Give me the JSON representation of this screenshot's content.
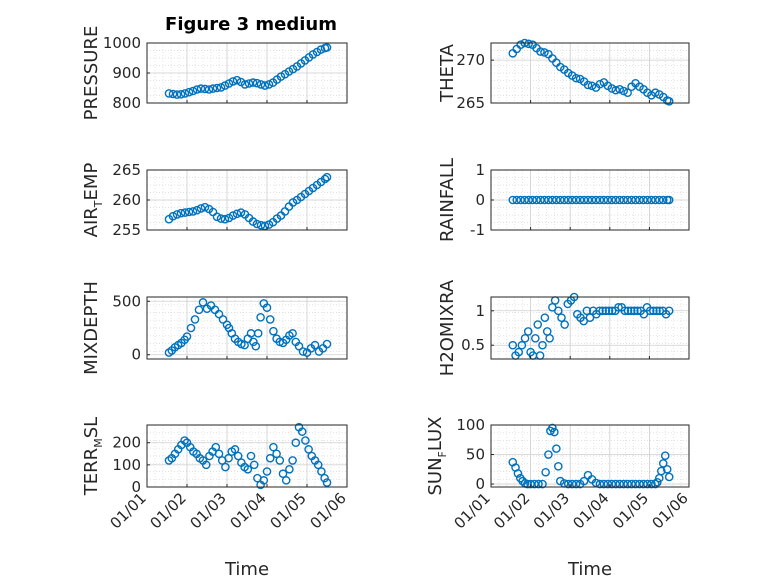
{
  "figure": {
    "title": "Figure 3 medium",
    "accent_color": "#0072BD",
    "grid_color": "#d9d9d9"
  },
  "chart_data": [
    {
      "type": "scatter",
      "id": "pressure",
      "title": "Figure 3 medium",
      "ylabel": "PRESSURE",
      "ylim": [
        800,
        1000
      ],
      "yticks": [
        800,
        900,
        1000
      ],
      "xlim": [
        0,
        5
      ],
      "xticks": [],
      "x": [
        0.55,
        0.65,
        0.75,
        0.85,
        0.95,
        1.05,
        1.15,
        1.25,
        1.35,
        1.45,
        1.55,
        1.65,
        1.75,
        1.85,
        1.95,
        2.05,
        2.15,
        2.25,
        2.35,
        2.45,
        2.55,
        2.65,
        2.75,
        2.85,
        2.95,
        3.05,
        3.15,
        3.25,
        3.35,
        3.45,
        3.55,
        3.65,
        3.75,
        3.85,
        3.95,
        4.05,
        4.15,
        4.25,
        4.35,
        4.45,
        4.5
      ],
      "y": [
        832,
        830,
        828,
        829,
        832,
        836,
        840,
        845,
        848,
        847,
        845,
        848,
        850,
        852,
        858,
        865,
        872,
        876,
        870,
        862,
        865,
        868,
        866,
        862,
        858,
        862,
        868,
        878,
        888,
        896,
        905,
        913,
        922,
        932,
        942,
        952,
        962,
        970,
        978,
        983,
        985
      ]
    },
    {
      "type": "scatter",
      "id": "theta",
      "ylabel": "THETA",
      "ylim": [
        265,
        272
      ],
      "yticks": [
        265,
        270
      ],
      "xlim": [
        0,
        5
      ],
      "xticks": [],
      "x": [
        0.55,
        0.65,
        0.75,
        0.85,
        0.95,
        1.05,
        1.15,
        1.25,
        1.35,
        1.45,
        1.55,
        1.65,
        1.75,
        1.85,
        1.95,
        2.05,
        2.15,
        2.25,
        2.35,
        2.45,
        2.55,
        2.65,
        2.75,
        2.85,
        2.95,
        3.05,
        3.15,
        3.25,
        3.35,
        3.45,
        3.55,
        3.65,
        3.75,
        3.85,
        3.95,
        4.05,
        4.15,
        4.25,
        4.35,
        4.45,
        4.5
      ],
      "y": [
        270.8,
        271.3,
        271.8,
        272.0,
        271.9,
        271.8,
        271.4,
        271.0,
        270.9,
        270.7,
        270.2,
        269.7,
        269.2,
        268.9,
        268.5,
        268.2,
        267.9,
        267.8,
        267.5,
        267.1,
        267.0,
        266.8,
        267.2,
        267.4,
        267.0,
        266.7,
        266.5,
        266.6,
        266.4,
        266.2,
        266.9,
        267.3,
        266.9,
        266.6,
        266.2,
        265.9,
        266.2,
        266.0,
        265.7,
        265.3,
        265.2
      ]
    },
    {
      "type": "scatter",
      "id": "air_temp",
      "ylabel": "AIR",
      "ylabel_sub": "T",
      "ylabel_rest": "EMP",
      "ylim": [
        255,
        265
      ],
      "yticks": [
        255,
        260,
        265
      ],
      "xlim": [
        0,
        5
      ],
      "xticks": [],
      "x": [
        0.55,
        0.65,
        0.75,
        0.85,
        0.95,
        1.05,
        1.15,
        1.25,
        1.35,
        1.45,
        1.55,
        1.65,
        1.75,
        1.85,
        1.95,
        2.05,
        2.15,
        2.25,
        2.35,
        2.45,
        2.55,
        2.65,
        2.75,
        2.85,
        2.95,
        3.05,
        3.15,
        3.25,
        3.35,
        3.45,
        3.55,
        3.65,
        3.75,
        3.85,
        3.95,
        4.05,
        4.15,
        4.25,
        4.35,
        4.45,
        4.5
      ],
      "y": [
        256.8,
        257.3,
        257.6,
        257.8,
        257.9,
        258.0,
        258.1,
        258.3,
        258.6,
        258.8,
        258.5,
        258.0,
        257.2,
        256.9,
        256.8,
        257.0,
        257.4,
        257.7,
        257.9,
        257.6,
        257.0,
        256.4,
        256.0,
        255.8,
        255.7,
        255.9,
        256.3,
        256.9,
        257.4,
        258.1,
        258.9,
        259.6,
        260.0,
        260.5,
        261.0,
        261.5,
        262.0,
        262.5,
        263.0,
        263.5,
        263.8
      ]
    },
    {
      "type": "scatter",
      "id": "rainfall",
      "ylabel": "RAINFALL",
      "ylim": [
        -1,
        1
      ],
      "yticks": [
        -1,
        0,
        1
      ],
      "xlim": [
        0,
        5
      ],
      "xticks": [],
      "x": [
        0.55,
        0.65,
        0.75,
        0.85,
        0.95,
        1.05,
        1.15,
        1.25,
        1.35,
        1.45,
        1.55,
        1.65,
        1.75,
        1.85,
        1.95,
        2.05,
        2.15,
        2.25,
        2.35,
        2.45,
        2.55,
        2.65,
        2.75,
        2.85,
        2.95,
        3.05,
        3.15,
        3.25,
        3.35,
        3.45,
        3.55,
        3.65,
        3.75,
        3.85,
        3.95,
        4.05,
        4.15,
        4.25,
        4.35,
        4.45,
        4.5
      ],
      "y": [
        0,
        0,
        0,
        0,
        0,
        0,
        0,
        0,
        0,
        0,
        0,
        0,
        0,
        0,
        0,
        0,
        0,
        0,
        0,
        0,
        0,
        0,
        0,
        0,
        0,
        0,
        0,
        0,
        0,
        0,
        0,
        0,
        0,
        0,
        0,
        0,
        0,
        0,
        0,
        0,
        0
      ]
    },
    {
      "type": "scatter",
      "id": "mixdepth",
      "ylabel": "MIXDEPTH",
      "ylim": [
        -40,
        540
      ],
      "yticks": [
        0,
        500
      ],
      "xlim": [
        0,
        5
      ],
      "xticks": [],
      "x": [
        0.55,
        0.62,
        0.7,
        0.78,
        0.86,
        0.94,
        1.0,
        1.1,
        1.2,
        1.3,
        1.4,
        1.5,
        1.6,
        1.7,
        1.8,
        1.9,
        2.0,
        2.05,
        2.12,
        2.2,
        2.28,
        2.36,
        2.44,
        2.52,
        2.6,
        2.66,
        2.72,
        2.78,
        2.84,
        2.92,
        3.0,
        3.08,
        3.16,
        3.24,
        3.32,
        3.4,
        3.48,
        3.56,
        3.64,
        3.72,
        3.8,
        3.9,
        4.0,
        4.1,
        4.2,
        4.3,
        4.4,
        4.5
      ],
      "y": [
        20,
        40,
        70,
        90,
        110,
        140,
        170,
        250,
        330,
        420,
        490,
        430,
        460,
        420,
        380,
        330,
        280,
        250,
        200,
        150,
        120,
        100,
        90,
        150,
        200,
        120,
        80,
        200,
        350,
        480,
        440,
        330,
        220,
        150,
        120,
        110,
        140,
        180,
        200,
        120,
        80,
        30,
        20,
        60,
        90,
        30,
        60,
        100
      ]
    },
    {
      "type": "scatter",
      "id": "h2omixra",
      "ylabel": "H2OMIXRA",
      "ylim": [
        0.3,
        1.2
      ],
      "yticks": [
        0.5,
        1
      ],
      "xlim": [
        0,
        5
      ],
      "xticks": [],
      "x": [
        0.55,
        0.62,
        0.7,
        0.78,
        0.86,
        0.94,
        1.0,
        1.06,
        1.12,
        1.18,
        1.24,
        1.3,
        1.36,
        1.42,
        1.48,
        1.55,
        1.62,
        1.7,
        1.78,
        1.86,
        1.94,
        2.02,
        2.1,
        2.18,
        2.26,
        2.34,
        2.42,
        2.5,
        2.58,
        2.66,
        2.74,
        2.82,
        2.9,
        2.98,
        3.06,
        3.14,
        3.22,
        3.3,
        3.38,
        3.46,
        3.54,
        3.62,
        3.7,
        3.78,
        3.86,
        3.94,
        4.02,
        4.1,
        4.18,
        4.26,
        4.34,
        4.42,
        4.5
      ],
      "y": [
        0.5,
        0.35,
        0.4,
        0.5,
        0.6,
        0.7,
        0.4,
        0.35,
        0.6,
        0.8,
        0.35,
        0.5,
        0.9,
        0.7,
        0.6,
        1.05,
        1.15,
        1.0,
        0.9,
        0.8,
        1.1,
        1.15,
        1.2,
        0.95,
        0.9,
        0.85,
        1.0,
        0.9,
        1.0,
        0.95,
        1.0,
        1.0,
        1.0,
        1.0,
        1.0,
        1.0,
        1.05,
        1.05,
        1.0,
        1.0,
        1.0,
        1.0,
        1.0,
        1.0,
        0.95,
        1.05,
        1.0,
        1.0,
        1.0,
        1.0,
        1.0,
        0.95,
        1.0
      ]
    },
    {
      "type": "scatter",
      "id": "terr_msl",
      "ylabel": "TERR",
      "ylabel_sub": "M",
      "ylabel_rest": "SL",
      "ylim": [
        0,
        280
      ],
      "yticks": [
        0,
        100,
        200
      ],
      "xlim": [
        0,
        5
      ],
      "xticks": [],
      "x": [
        0.55,
        0.62,
        0.7,
        0.78,
        0.86,
        0.94,
        1.0,
        1.08,
        1.16,
        1.24,
        1.32,
        1.4,
        1.48,
        1.56,
        1.64,
        1.72,
        1.8,
        1.88,
        1.96,
        2.04,
        2.12,
        2.2,
        2.28,
        2.36,
        2.44,
        2.52,
        2.6,
        2.68,
        2.76,
        2.84,
        2.92,
        3.0,
        3.08,
        3.16,
        3.24,
        3.32,
        3.4,
        3.48,
        3.56,
        3.64,
        3.72,
        3.8,
        3.88,
        3.96,
        4.04,
        4.12,
        4.2,
        4.28,
        4.36,
        4.44,
        4.5
      ],
      "y": [
        120,
        130,
        150,
        170,
        190,
        210,
        200,
        180,
        160,
        150,
        130,
        120,
        100,
        140,
        160,
        180,
        150,
        120,
        90,
        130,
        160,
        170,
        140,
        110,
        90,
        80,
        140,
        100,
        40,
        10,
        30,
        70,
        130,
        180,
        150,
        120,
        60,
        30,
        80,
        120,
        200,
        270,
        250,
        210,
        170,
        140,
        120,
        100,
        70,
        40,
        20
      ]
    },
    {
      "type": "scatter",
      "id": "sun_flux",
      "ylabel": "SUN",
      "ylabel_sub": "F",
      "ylabel_rest": "LUX",
      "ylim": [
        -5,
        100
      ],
      "yticks": [
        0,
        50,
        100
      ],
      "xlim": [
        0,
        5
      ],
      "xticks": [
        "01/01",
        "01/02",
        "01/03",
        "01/04",
        "01/05",
        "01/06"
      ],
      "xlabel": "Time",
      "x": [
        0.55,
        0.62,
        0.68,
        0.74,
        0.8,
        0.86,
        0.92,
        1.0,
        1.1,
        1.2,
        1.3,
        1.38,
        1.45,
        1.5,
        1.55,
        1.6,
        1.65,
        1.7,
        1.75,
        1.85,
        1.95,
        2.05,
        2.15,
        2.25,
        2.35,
        2.45,
        2.55,
        2.65,
        2.75,
        2.85,
        2.95,
        3.05,
        3.15,
        3.25,
        3.35,
        3.45,
        3.55,
        3.65,
        3.75,
        3.85,
        3.95,
        4.05,
        4.15,
        4.2,
        4.25,
        4.3,
        4.35,
        4.4,
        4.45,
        4.5
      ],
      "y": [
        37,
        28,
        18,
        10,
        5,
        1,
        0,
        0,
        0,
        0,
        0,
        20,
        50,
        90,
        95,
        88,
        60,
        30,
        5,
        1,
        0,
        0,
        0,
        0,
        5,
        15,
        8,
        2,
        0,
        0,
        0,
        0,
        0,
        0,
        0,
        0,
        0,
        0,
        0,
        0,
        0,
        0,
        0,
        3,
        10,
        22,
        35,
        48,
        25,
        12
      ]
    },
    {
      "type": "axis-only",
      "id": "bottom-left-x",
      "xlim": [
        0,
        5
      ],
      "xticks": [
        "01/01",
        "01/02",
        "01/03",
        "01/04",
        "01/05",
        "01/06"
      ],
      "xlabel": "Time"
    }
  ]
}
